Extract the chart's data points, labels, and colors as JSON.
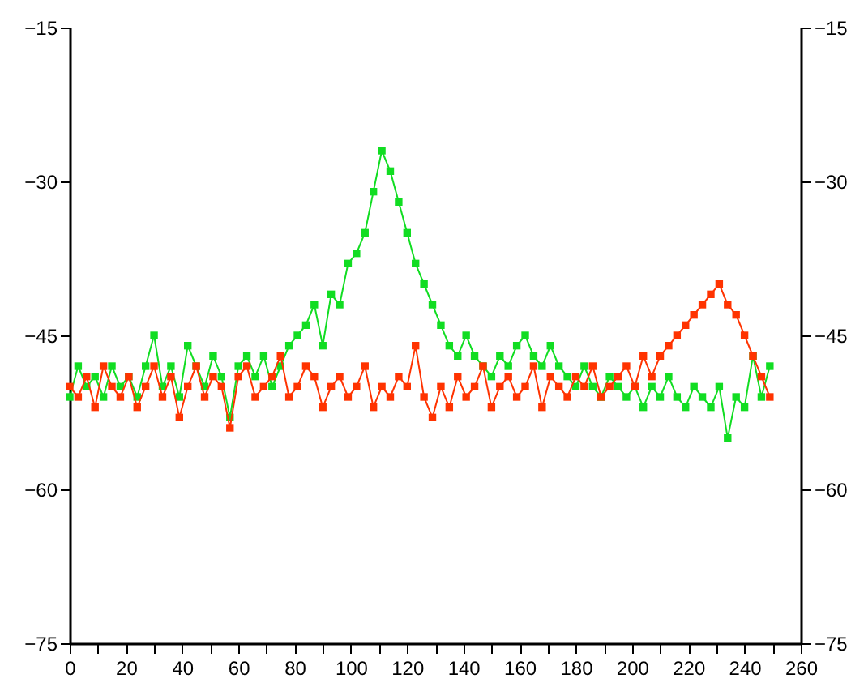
{
  "chart_data": {
    "type": "line",
    "marker": "square",
    "line_style": "solid",
    "grid": false,
    "x": [
      0,
      3,
      6,
      9,
      12,
      15,
      18,
      21,
      24,
      27,
      30,
      33,
      36,
      39,
      42,
      45,
      48,
      51,
      54,
      57,
      60,
      63,
      66,
      69,
      72,
      75,
      78,
      81,
      84,
      87,
      90,
      93,
      96,
      99,
      102,
      105,
      108,
      111,
      114,
      117,
      120,
      123,
      126,
      129,
      132,
      135,
      138,
      141,
      144,
      147,
      150,
      153,
      156,
      159,
      162,
      165,
      168,
      171,
      174,
      177,
      180,
      183,
      186,
      189,
      192,
      195,
      198,
      201,
      204,
      207,
      210,
      213,
      216,
      219,
      222,
      225,
      228,
      231,
      234,
      237,
      240,
      243,
      246,
      249
    ],
    "series": [
      {
        "color": "#11dd22",
        "values": [
          -51,
          -48,
          -50,
          -49,
          -51,
          -48,
          -50,
          -49,
          -51,
          -48,
          -45,
          -50,
          -48,
          -51,
          -46,
          -48,
          -50,
          -47,
          -49,
          -53,
          -48,
          -47,
          -49,
          -47,
          -50,
          -48,
          -46,
          -45,
          -44,
          -42,
          -46,
          -41,
          -42,
          -38,
          -37,
          -35,
          -31,
          -27,
          -29,
          -32,
          -35,
          -38,
          -40,
          -42,
          -44,
          -46,
          -47,
          -45,
          -47,
          -48,
          -49,
          -47,
          -48,
          -46,
          -45,
          -47,
          -48,
          -46,
          -48,
          -49,
          -50,
          -48,
          -50,
          -51,
          -49,
          -50,
          -51,
          -50,
          -52,
          -50,
          -51,
          -49,
          -51,
          -52,
          -50,
          -51,
          -52,
          -50,
          -55,
          -51,
          -52,
          -47,
          -51,
          -48
        ]
      },
      {
        "color": "#ff3300",
        "values": [
          -50,
          -51,
          -49,
          -52,
          -48,
          -50,
          -51,
          -49,
          -52,
          -50,
          -48,
          -51,
          -49,
          -53,
          -50,
          -48,
          -51,
          -49,
          -50,
          -54,
          -49,
          -48,
          -51,
          -50,
          -49,
          -47,
          -51,
          -50,
          -48,
          -49,
          -52,
          -50,
          -49,
          -51,
          -50,
          -48,
          -52,
          -50,
          -51,
          -49,
          -50,
          -46,
          -51,
          -53,
          -50,
          -52,
          -49,
          -51,
          -50,
          -48,
          -52,
          -50,
          -49,
          -51,
          -50,
          -48,
          -52,
          -49,
          -50,
          -51,
          -49,
          -50,
          -48,
          -51,
          -50,
          -49,
          -48,
          -50,
          -47,
          -49,
          -47,
          -46,
          -45,
          -44,
          -43,
          -42,
          -41,
          -40,
          -42,
          -43,
          -45,
          -47,
          -49,
          -51
        ]
      }
    ],
    "xlim": [
      0,
      260
    ],
    "xticks": [
      0,
      {
        "value": 10,
        "label": null
      },
      20,
      {
        "value": 30,
        "label": null
      },
      40,
      {
        "value": 50,
        "label": null
      },
      60,
      {
        "value": 70,
        "label": null
      },
      80,
      {
        "value": 90,
        "label": null
      },
      100,
      {
        "value": 110,
        "label": null
      },
      120,
      {
        "value": 130,
        "label": null
      },
      140,
      {
        "value": 150,
        "label": null
      },
      160,
      {
        "value": 170,
        "label": null
      },
      180,
      {
        "value": 190,
        "label": null
      },
      200,
      {
        "value": 210,
        "label": null
      },
      220,
      {
        "value": 230,
        "label": null
      },
      240,
      {
        "value": 250,
        "label": null
      },
      260
    ],
    "ylim": [
      -75,
      -15
    ],
    "yticks": [
      -75,
      -60,
      -45,
      -30,
      -15
    ],
    "y2lim": [
      -75,
      -15
    ],
    "y2ticks": [
      -75,
      -60,
      -45,
      -30,
      -15
    ]
  }
}
